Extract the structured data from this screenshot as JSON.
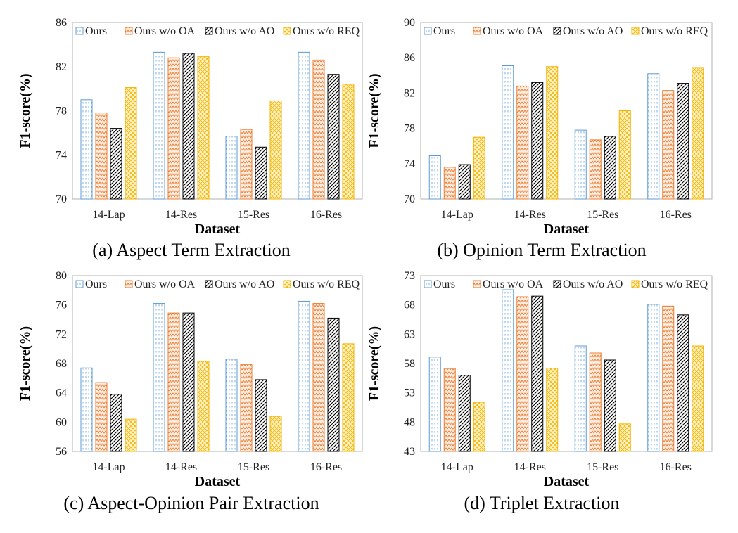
{
  "series_style": [
    {
      "stroke": "#5b9bd5",
      "fill": "#ffffff",
      "pattern": "dots"
    },
    {
      "stroke": "#ed7d31",
      "fill": "#fbe3d3",
      "pattern": "zigzag"
    },
    {
      "stroke": "#000000",
      "fill": "#ffffff",
      "pattern": "diag"
    },
    {
      "stroke": "#f4b400",
      "fill": "#fdebb0",
      "pattern": "checker"
    }
  ],
  "chart_data": [
    {
      "type": "bar",
      "caption": "(a) Aspect Term Extraction",
      "xlabel": "Dataset",
      "ylabel": "F1-score(%)",
      "categories": [
        "14-Lap",
        "14-Res",
        "15-Res",
        "16-Res"
      ],
      "ylim": [
        70,
        86
      ],
      "yticks": [
        70,
        74,
        78,
        82,
        86
      ],
      "legend_position": "top",
      "series": [
        {
          "name": "Ours",
          "values": [
            79.0,
            83.3,
            75.7,
            83.3
          ]
        },
        {
          "name": "Ours w/o OA",
          "values": [
            77.8,
            82.8,
            76.3,
            82.6
          ]
        },
        {
          "name": "Ours w/o AO",
          "values": [
            76.4,
            83.2,
            74.7,
            81.3
          ]
        },
        {
          "name": "Ours w/o REQ",
          "values": [
            80.1,
            82.9,
            78.9,
            80.4
          ]
        }
      ]
    },
    {
      "type": "bar",
      "caption": "(b) Opinion Term Extraction",
      "xlabel": "Dataset",
      "ylabel": "F1-score(%)",
      "categories": [
        "14-Lap",
        "14-Res",
        "15-Res",
        "16-Res"
      ],
      "ylim": [
        70,
        90
      ],
      "yticks": [
        70,
        74,
        78,
        82,
        86,
        90
      ],
      "legend_position": "top",
      "series": [
        {
          "name": "Ours",
          "values": [
            74.9,
            85.1,
            77.8,
            84.2
          ]
        },
        {
          "name": "Ours w/o OA",
          "values": [
            73.6,
            82.8,
            76.7,
            82.3
          ]
        },
        {
          "name": "Ours w/o AO",
          "values": [
            73.9,
            83.2,
            77.1,
            83.1
          ]
        },
        {
          "name": "Ours w/o REQ",
          "values": [
            77.0,
            85.0,
            80.0,
            84.9
          ]
        }
      ]
    },
    {
      "type": "bar",
      "caption": "(c) Aspect-Opinion Pair Extraction",
      "xlabel": "Dataset",
      "ylabel": "F1-score(%)",
      "categories": [
        "14-Lap",
        "14-Res",
        "15-Res",
        "16-Res"
      ],
      "ylim": [
        56,
        80
      ],
      "yticks": [
        56,
        60,
        64,
        68,
        72,
        76,
        80
      ],
      "legend_position": "top",
      "series": [
        {
          "name": "Ours",
          "values": [
            67.4,
            76.2,
            68.6,
            76.5
          ]
        },
        {
          "name": "Ours w/o OA",
          "values": [
            65.4,
            74.9,
            67.9,
            76.2
          ]
        },
        {
          "name": "Ours w/o AO",
          "values": [
            63.8,
            74.9,
            65.8,
            74.2
          ]
        },
        {
          "name": "Ours w/o REQ",
          "values": [
            60.4,
            68.3,
            60.8,
            70.7
          ]
        }
      ]
    },
    {
      "type": "bar",
      "caption": "(d) Triplet Extraction",
      "xlabel": "Dataset",
      "ylabel": "F1-score(%)",
      "categories": [
        "14-Lap",
        "14-Res",
        "15-Res",
        "16-Res"
      ],
      "ylim": [
        43,
        73
      ],
      "yticks": [
        43,
        48,
        53,
        58,
        63,
        68,
        73
      ],
      "legend_position": "top",
      "series": [
        {
          "name": "Ours",
          "values": [
            59.1,
            70.6,
            61.0,
            68.1
          ]
        },
        {
          "name": "Ours w/o OA",
          "values": [
            57.2,
            69.4,
            59.8,
            67.8
          ]
        },
        {
          "name": "Ours w/o AO",
          "values": [
            56.0,
            69.5,
            58.6,
            66.3
          ]
        },
        {
          "name": "Ours w/o REQ",
          "values": [
            51.4,
            57.2,
            47.7,
            61.0
          ]
        }
      ]
    }
  ]
}
